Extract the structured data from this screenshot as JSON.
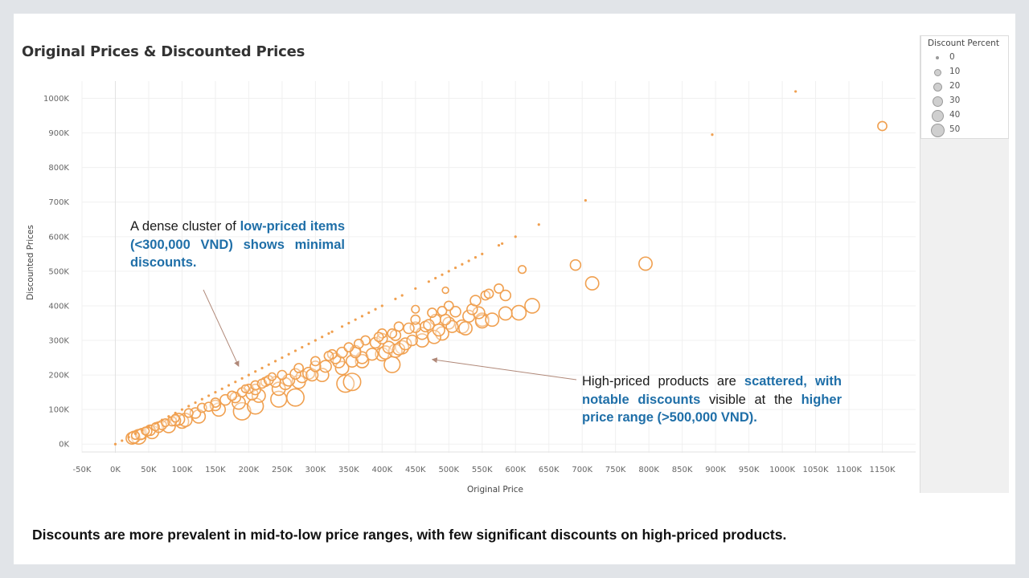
{
  "slide": {
    "takeaway": "Discounts are more prevalent in mid-to-low price ranges, with few significant discounts on high-priced products."
  },
  "annotations": {
    "left": {
      "segments": [
        {
          "text": "A dense cluster of ",
          "bold": false
        },
        {
          "text": "low-priced items (<300,000 VND) shows minimal discounts.",
          "bold": true
        }
      ],
      "arrow_points_to": {
        "x": 185000,
        "y": 225000
      }
    },
    "right": {
      "segments": [
        {
          "text": "High-priced products are ",
          "bold": false
        },
        {
          "text": "scattered, with notable discounts",
          "bold": true
        },
        {
          "text": " visible at the ",
          "bold": false
        },
        {
          "text": "higher price range (>500,000 VND).",
          "bold": true
        }
      ],
      "arrow_points_to": {
        "x": 475000,
        "y": 245000
      }
    }
  },
  "legend": {
    "title": "Discount Percent",
    "items": [
      {
        "label": "0",
        "value": 0
      },
      {
        "label": "10",
        "value": 10
      },
      {
        "label": "20",
        "value": 20
      },
      {
        "label": "30",
        "value": 30
      },
      {
        "label": "40",
        "value": 40
      },
      {
        "label": "50",
        "value": 50
      }
    ]
  },
  "colors": {
    "marks": "#f0a050",
    "highlight_text": "#1f6fa8",
    "gridlines": "#f0f0f0",
    "arrow": "#b08878"
  },
  "chart_data": {
    "type": "scatter",
    "title": "Original Prices & Discounted Prices",
    "xlabel": "Original Price",
    "ylabel": "Discounted Prices",
    "xlim": [
      -50000,
      1150000
    ],
    "ylim": [
      0,
      1000000
    ],
    "x_ticks": [
      -50000,
      0,
      50000,
      100000,
      150000,
      200000,
      250000,
      300000,
      350000,
      400000,
      450000,
      500000,
      550000,
      600000,
      650000,
      700000,
      750000,
      800000,
      850000,
      900000,
      950000,
      1000000,
      1050000,
      1100000,
      1150000
    ],
    "x_tick_labels": [
      "-50K",
      "0K",
      "50K",
      "100K",
      "150K",
      "200K",
      "250K",
      "300K",
      "350K",
      "400K",
      "450K",
      "500K",
      "550K",
      "600K",
      "650K",
      "700K",
      "750K",
      "800K",
      "850K",
      "900K",
      "950K",
      "1000K",
      "1050K",
      "1100K",
      "1150K"
    ],
    "y_ticks": [
      0,
      100000,
      200000,
      300000,
      400000,
      500000,
      600000,
      700000,
      800000,
      900000,
      1000000
    ],
    "y_tick_labels": [
      "0K",
      "100K",
      "200K",
      "300K",
      "400K",
      "500K",
      "600K",
      "700K",
      "800K",
      "900K",
      "1000K"
    ],
    "size_field": "Discount Percent",
    "grid": true,
    "legend_position": "top-right",
    "points": [
      {
        "x": 0,
        "y": 0,
        "d": 0
      },
      {
        "x": 10000,
        "y": 10000,
        "d": 0
      },
      {
        "x": 20000,
        "y": 20000,
        "d": 0
      },
      {
        "x": 30000,
        "y": 30000,
        "d": 0
      },
      {
        "x": 40000,
        "y": 40000,
        "d": 0
      },
      {
        "x": 50000,
        "y": 50000,
        "d": 0
      },
      {
        "x": 60000,
        "y": 60000,
        "d": 0
      },
      {
        "x": 70000,
        "y": 70000,
        "d": 0
      },
      {
        "x": 80000,
        "y": 80000,
        "d": 0
      },
      {
        "x": 90000,
        "y": 90000,
        "d": 0
      },
      {
        "x": 100000,
        "y": 100000,
        "d": 0
      },
      {
        "x": 110000,
        "y": 110000,
        "d": 0
      },
      {
        "x": 120000,
        "y": 120000,
        "d": 0
      },
      {
        "x": 130000,
        "y": 130000,
        "d": 0
      },
      {
        "x": 140000,
        "y": 140000,
        "d": 0
      },
      {
        "x": 150000,
        "y": 150000,
        "d": 0
      },
      {
        "x": 160000,
        "y": 160000,
        "d": 0
      },
      {
        "x": 170000,
        "y": 170000,
        "d": 0
      },
      {
        "x": 180000,
        "y": 180000,
        "d": 0
      },
      {
        "x": 190000,
        "y": 190000,
        "d": 0
      },
      {
        "x": 200000,
        "y": 200000,
        "d": 0
      },
      {
        "x": 210000,
        "y": 210000,
        "d": 0
      },
      {
        "x": 220000,
        "y": 220000,
        "d": 0
      },
      {
        "x": 230000,
        "y": 230000,
        "d": 0
      },
      {
        "x": 240000,
        "y": 240000,
        "d": 0
      },
      {
        "x": 250000,
        "y": 250000,
        "d": 0
      },
      {
        "x": 260000,
        "y": 260000,
        "d": 0
      },
      {
        "x": 270000,
        "y": 270000,
        "d": 0
      },
      {
        "x": 280000,
        "y": 280000,
        "d": 0
      },
      {
        "x": 290000,
        "y": 290000,
        "d": 0
      },
      {
        "x": 300000,
        "y": 300000,
        "d": 0
      },
      {
        "x": 310000,
        "y": 310000,
        "d": 0
      },
      {
        "x": 320000,
        "y": 320000,
        "d": 0
      },
      {
        "x": 325000,
        "y": 325000,
        "d": 0
      },
      {
        "x": 340000,
        "y": 340000,
        "d": 0
      },
      {
        "x": 350000,
        "y": 350000,
        "d": 0
      },
      {
        "x": 360000,
        "y": 360000,
        "d": 0
      },
      {
        "x": 370000,
        "y": 370000,
        "d": 0
      },
      {
        "x": 380000,
        "y": 380000,
        "d": 0
      },
      {
        "x": 390000,
        "y": 390000,
        "d": 0
      },
      {
        "x": 400000,
        "y": 400000,
        "d": 0
      },
      {
        "x": 420000,
        "y": 420000,
        "d": 0
      },
      {
        "x": 430000,
        "y": 430000,
        "d": 0
      },
      {
        "x": 450000,
        "y": 450000,
        "d": 0
      },
      {
        "x": 470000,
        "y": 470000,
        "d": 0
      },
      {
        "x": 480000,
        "y": 480000,
        "d": 0
      },
      {
        "x": 490000,
        "y": 490000,
        "d": 0
      },
      {
        "x": 500000,
        "y": 500000,
        "d": 0
      },
      {
        "x": 510000,
        "y": 510000,
        "d": 0
      },
      {
        "x": 520000,
        "y": 520000,
        "d": 0
      },
      {
        "x": 530000,
        "y": 530000,
        "d": 0
      },
      {
        "x": 540000,
        "y": 540000,
        "d": 0
      },
      {
        "x": 550000,
        "y": 550000,
        "d": 0
      },
      {
        "x": 575000,
        "y": 575000,
        "d": 0
      },
      {
        "x": 580000,
        "y": 580000,
        "d": 0
      },
      {
        "x": 600000,
        "y": 600000,
        "d": 0
      },
      {
        "x": 635000,
        "y": 635000,
        "d": 0
      },
      {
        "x": 705000,
        "y": 705000,
        "d": 0
      },
      {
        "x": 895000,
        "y": 895000,
        "d": 0
      },
      {
        "x": 1020000,
        "y": 1020000,
        "d": 0
      },
      {
        "x": 30000,
        "y": 25000,
        "d": 15
      },
      {
        "x": 45000,
        "y": 38000,
        "d": 15
      },
      {
        "x": 60000,
        "y": 50000,
        "d": 15
      },
      {
        "x": 75000,
        "y": 62000,
        "d": 15
      },
      {
        "x": 90000,
        "y": 75000,
        "d": 15
      },
      {
        "x": 110000,
        "y": 90000,
        "d": 18
      },
      {
        "x": 130000,
        "y": 105000,
        "d": 20
      },
      {
        "x": 150000,
        "y": 120000,
        "d": 20
      },
      {
        "x": 175000,
        "y": 140000,
        "d": 20
      },
      {
        "x": 200000,
        "y": 160000,
        "d": 20
      },
      {
        "x": 225000,
        "y": 180000,
        "d": 20
      },
      {
        "x": 250000,
        "y": 200000,
        "d": 20
      },
      {
        "x": 275000,
        "y": 220000,
        "d": 20
      },
      {
        "x": 300000,
        "y": 240000,
        "d": 20
      },
      {
        "x": 325000,
        "y": 260000,
        "d": 20
      },
      {
        "x": 350000,
        "y": 280000,
        "d": 20
      },
      {
        "x": 375000,
        "y": 300000,
        "d": 20
      },
      {
        "x": 400000,
        "y": 320000,
        "d": 20
      },
      {
        "x": 425000,
        "y": 340000,
        "d": 20
      },
      {
        "x": 450000,
        "y": 360000,
        "d": 20
      },
      {
        "x": 475000,
        "y": 380000,
        "d": 20
      },
      {
        "x": 500000,
        "y": 400000,
        "d": 20
      },
      {
        "x": 40000,
        "y": 30000,
        "d": 25
      },
      {
        "x": 65000,
        "y": 49000,
        "d": 25
      },
      {
        "x": 90000,
        "y": 68000,
        "d": 25
      },
      {
        "x": 120000,
        "y": 90000,
        "d": 25
      },
      {
        "x": 150000,
        "y": 112000,
        "d": 25
      },
      {
        "x": 180000,
        "y": 135000,
        "d": 25
      },
      {
        "x": 210000,
        "y": 158000,
        "d": 25
      },
      {
        "x": 240000,
        "y": 180000,
        "d": 25
      },
      {
        "x": 270000,
        "y": 203000,
        "d": 25
      },
      {
        "x": 300000,
        "y": 225000,
        "d": 25
      },
      {
        "x": 330000,
        "y": 248000,
        "d": 25
      },
      {
        "x": 360000,
        "y": 270000,
        "d": 25
      },
      {
        "x": 390000,
        "y": 293000,
        "d": 25
      },
      {
        "x": 420000,
        "y": 315000,
        "d": 25
      },
      {
        "x": 450000,
        "y": 338000,
        "d": 25
      },
      {
        "x": 480000,
        "y": 360000,
        "d": 25
      },
      {
        "x": 510000,
        "y": 383000,
        "d": 25
      },
      {
        "x": 35000,
        "y": 21000,
        "d": 40
      },
      {
        "x": 55000,
        "y": 35000,
        "d": 35
      },
      {
        "x": 80000,
        "y": 52000,
        "d": 35
      },
      {
        "x": 100000,
        "y": 65000,
        "d": 35
      },
      {
        "x": 125000,
        "y": 80000,
        "d": 35
      },
      {
        "x": 155000,
        "y": 100000,
        "d": 35
      },
      {
        "x": 185000,
        "y": 120000,
        "d": 35
      },
      {
        "x": 215000,
        "y": 140000,
        "d": 35
      },
      {
        "x": 245000,
        "y": 160000,
        "d": 35
      },
      {
        "x": 275000,
        "y": 180000,
        "d": 35
      },
      {
        "x": 310000,
        "y": 200000,
        "d": 35
      },
      {
        "x": 340000,
        "y": 220000,
        "d": 35
      },
      {
        "x": 370000,
        "y": 240000,
        "d": 35
      },
      {
        "x": 400000,
        "y": 260000,
        "d": 35
      },
      {
        "x": 430000,
        "y": 280000,
        "d": 35
      },
      {
        "x": 460000,
        "y": 300000,
        "d": 35
      },
      {
        "x": 490000,
        "y": 320000,
        "d": 35
      },
      {
        "x": 520000,
        "y": 340000,
        "d": 35
      },
      {
        "x": 550000,
        "y": 360000,
        "d": 35
      },
      {
        "x": 25000,
        "y": 17000,
        "d": 30
      },
      {
        "x": 28000,
        "y": 20000,
        "d": 30
      },
      {
        "x": 38000,
        "y": 28000,
        "d": 25
      },
      {
        "x": 48000,
        "y": 37000,
        "d": 20
      },
      {
        "x": 52000,
        "y": 40000,
        "d": 25
      },
      {
        "x": 70000,
        "y": 55000,
        "d": 20
      },
      {
        "x": 85000,
        "y": 66000,
        "d": 20
      },
      {
        "x": 95000,
        "y": 72000,
        "d": 30
      },
      {
        "x": 105000,
        "y": 70000,
        "d": 35
      },
      {
        "x": 140000,
        "y": 108000,
        "d": 20
      },
      {
        "x": 165000,
        "y": 128000,
        "d": 25
      },
      {
        "x": 190000,
        "y": 150000,
        "d": 20
      },
      {
        "x": 195000,
        "y": 160000,
        "d": 15
      },
      {
        "x": 205000,
        "y": 145000,
        "d": 30
      },
      {
        "x": 210000,
        "y": 170000,
        "d": 20
      },
      {
        "x": 220000,
        "y": 175000,
        "d": 20
      },
      {
        "x": 230000,
        "y": 185000,
        "d": 20
      },
      {
        "x": 235000,
        "y": 195000,
        "d": 15
      },
      {
        "x": 190000,
        "y": 95000,
        "d": 50
      },
      {
        "x": 210000,
        "y": 110000,
        "d": 45
      },
      {
        "x": 245000,
        "y": 130000,
        "d": 45
      },
      {
        "x": 270000,
        "y": 135000,
        "d": 50
      },
      {
        "x": 255000,
        "y": 175000,
        "d": 30
      },
      {
        "x": 260000,
        "y": 185000,
        "d": 30
      },
      {
        "x": 280000,
        "y": 195000,
        "d": 30
      },
      {
        "x": 290000,
        "y": 205000,
        "d": 30
      },
      {
        "x": 295000,
        "y": 200000,
        "d": 30
      },
      {
        "x": 315000,
        "y": 225000,
        "d": 30
      },
      {
        "x": 320000,
        "y": 255000,
        "d": 20
      },
      {
        "x": 335000,
        "y": 238000,
        "d": 30
      },
      {
        "x": 340000,
        "y": 265000,
        "d": 25
      },
      {
        "x": 345000,
        "y": 175000,
        "d": 50
      },
      {
        "x": 355000,
        "y": 180000,
        "d": 50
      },
      {
        "x": 355000,
        "y": 240000,
        "d": 30
      },
      {
        "x": 360000,
        "y": 265000,
        "d": 25
      },
      {
        "x": 365000,
        "y": 290000,
        "d": 20
      },
      {
        "x": 370000,
        "y": 250000,
        "d": 30
      },
      {
        "x": 385000,
        "y": 260000,
        "d": 30
      },
      {
        "x": 395000,
        "y": 310000,
        "d": 20
      },
      {
        "x": 400000,
        "y": 305000,
        "d": 25
      },
      {
        "x": 405000,
        "y": 265000,
        "d": 35
      },
      {
        "x": 410000,
        "y": 280000,
        "d": 30
      },
      {
        "x": 415000,
        "y": 230000,
        "d": 45
      },
      {
        "x": 415000,
        "y": 320000,
        "d": 20
      },
      {
        "x": 420000,
        "y": 270000,
        "d": 35
      },
      {
        "x": 425000,
        "y": 275000,
        "d": 30
      },
      {
        "x": 435000,
        "y": 290000,
        "d": 30
      },
      {
        "x": 440000,
        "y": 335000,
        "d": 25
      },
      {
        "x": 445000,
        "y": 300000,
        "d": 25
      },
      {
        "x": 450000,
        "y": 390000,
        "d": 15
      },
      {
        "x": 460000,
        "y": 320000,
        "d": 30
      },
      {
        "x": 465000,
        "y": 340000,
        "d": 25
      },
      {
        "x": 470000,
        "y": 345000,
        "d": 25
      },
      {
        "x": 478000,
        "y": 310000,
        "d": 35
      },
      {
        "x": 485000,
        "y": 330000,
        "d": 30
      },
      {
        "x": 490000,
        "y": 385000,
        "d": 20
      },
      {
        "x": 495000,
        "y": 360000,
        "d": 25
      },
      {
        "x": 495000,
        "y": 445000,
        "d": 10
      },
      {
        "x": 500000,
        "y": 350000,
        "d": 30
      },
      {
        "x": 505000,
        "y": 340000,
        "d": 30
      },
      {
        "x": 525000,
        "y": 335000,
        "d": 35
      },
      {
        "x": 530000,
        "y": 370000,
        "d": 30
      },
      {
        "x": 535000,
        "y": 390000,
        "d": 25
      },
      {
        "x": 540000,
        "y": 415000,
        "d": 25
      },
      {
        "x": 545000,
        "y": 380000,
        "d": 30
      },
      {
        "x": 550000,
        "y": 355000,
        "d": 35
      },
      {
        "x": 555000,
        "y": 430000,
        "d": 20
      },
      {
        "x": 560000,
        "y": 435000,
        "d": 20
      },
      {
        "x": 565000,
        "y": 360000,
        "d": 35
      },
      {
        "x": 575000,
        "y": 450000,
        "d": 20
      },
      {
        "x": 585000,
        "y": 430000,
        "d": 25
      },
      {
        "x": 585000,
        "y": 378000,
        "d": 35
      },
      {
        "x": 605000,
        "y": 380000,
        "d": 40
      },
      {
        "x": 610000,
        "y": 505000,
        "d": 15
      },
      {
        "x": 625000,
        "y": 400000,
        "d": 40
      },
      {
        "x": 690000,
        "y": 518000,
        "d": 25
      },
      {
        "x": 715000,
        "y": 465000,
        "d": 35
      },
      {
        "x": 795000,
        "y": 522000,
        "d": 35
      },
      {
        "x": 1150000,
        "y": 920000,
        "d": 20
      }
    ]
  }
}
